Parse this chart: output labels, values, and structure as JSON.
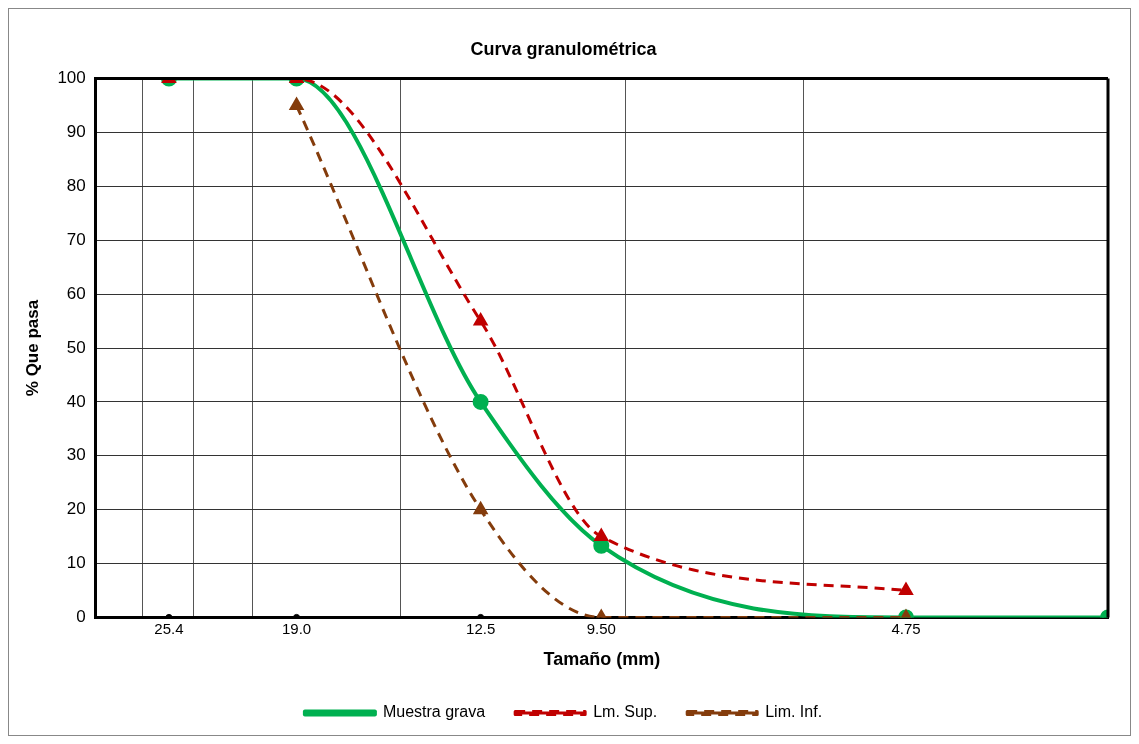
{
  "chart_data": {
    "type": "line",
    "title": "Curva granulométrica",
    "xlabel": "Tamaño (mm)",
    "ylabel": "% Que pasa",
    "log": "x",
    "xlim": [
      30,
      3
    ],
    "ylim": [
      0,
      100
    ],
    "xticks": [
      {
        "value": 27,
        "label": null
      },
      {
        "value": 25.4,
        "label": "25.4"
      },
      {
        "value": 24,
        "label": null
      },
      {
        "value": 21,
        "label": null
      },
      {
        "value": 19,
        "label": "19.0"
      },
      {
        "value": 15,
        "label": null
      },
      {
        "value": 12.5,
        "label": "12.5"
      },
      {
        "value": 9.5,
        "label": "9.50"
      },
      {
        "value": 9,
        "label": null
      },
      {
        "value": 6,
        "label": null
      },
      {
        "value": 4.75,
        "label": "4.75"
      }
    ],
    "yticks": [
      0,
      10,
      20,
      30,
      40,
      50,
      60,
      70,
      80,
      90,
      100
    ],
    "grid": true,
    "legend": "bottom",
    "series": [
      {
        "name": "Muestra grava",
        "color": "#00b050",
        "x": [
          25.4,
          19,
          12.5,
          9.5,
          4.75,
          3
        ],
        "values": [
          100,
          100,
          40,
          13.3,
          0,
          0
        ],
        "marker": "circle",
        "line_style": "solid"
      },
      {
        "name": "Lm. Sup.",
        "color": "#c00000",
        "x": [
          25.4,
          19,
          12.5,
          9.5,
          4.75
        ],
        "values": [
          100,
          100,
          55,
          15,
          5
        ],
        "marker": "triangle",
        "line_style": "dashed"
      },
      {
        "name": "Lim. Inf.",
        "color": "#843c0c",
        "x": [
          19,
          12.5,
          9.5,
          4.75
        ],
        "values": [
          95,
          20,
          0,
          0
        ],
        "marker": "triangle",
        "line_style": "dashed"
      },
      {
        "type": "scatter",
        "color": "#000000",
        "x": [
          25.4,
          19,
          12.5
        ],
        "values": [
          0,
          0,
          0
        ],
        "marker": "circle"
      }
    ]
  }
}
